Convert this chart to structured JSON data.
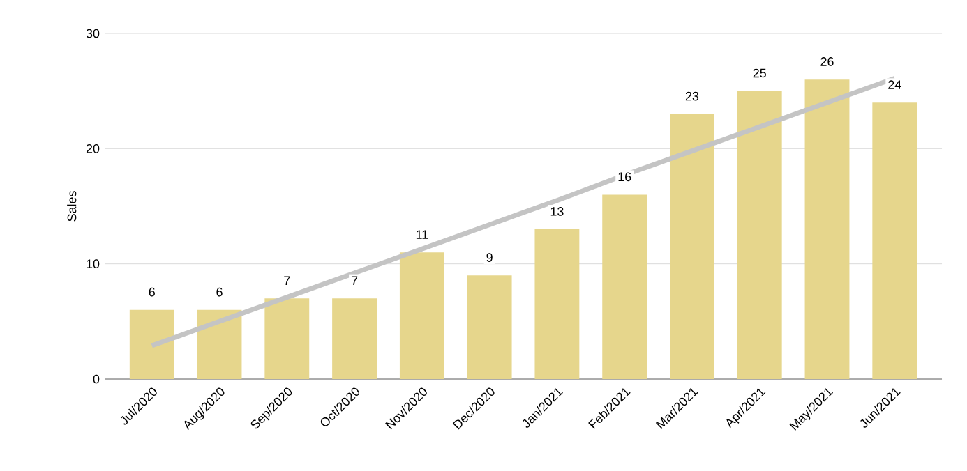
{
  "chart_data": {
    "type": "bar",
    "ylabel": "Sales",
    "categories": [
      "Jul/2020",
      "Aug/2020",
      "Sep/2020",
      "Oct/2020",
      "Nov/2020",
      "Dec/2020",
      "Jan/2021",
      "Feb/2021",
      "Mar/2021",
      "Apr/2021",
      "May/2021",
      "Jun/2021"
    ],
    "series": [
      {
        "color": "#e6d68c",
        "values": [
          6,
          6,
          7,
          7,
          11,
          9,
          13,
          16,
          23,
          25,
          26,
          24
        ],
        "value_labels": [
          "6",
          "6",
          "7",
          "7",
          "11",
          "9",
          "13",
          "16",
          "23",
          "25",
          "26",
          "24"
        ]
      },
      {
        "type": "line",
        "color": "#c4c4c4",
        "values": [
          2.9,
          5.0,
          7.1,
          9.2,
          11.3,
          13.4,
          15.5,
          17.7,
          19.8,
          21.9,
          24.0,
          26.1
        ]
      }
    ],
    "ylim": [
      0,
      30
    ],
    "yticks": [
      0,
      10,
      20,
      30
    ],
    "grid": "y"
  }
}
